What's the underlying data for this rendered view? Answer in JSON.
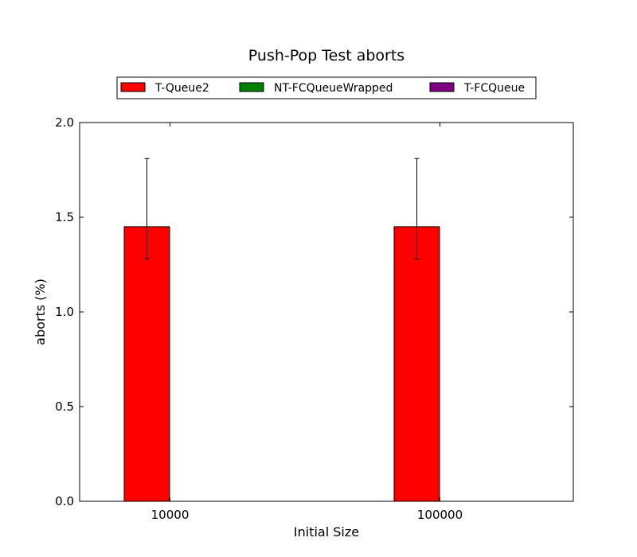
{
  "chart_data": {
    "type": "bar",
    "title": "Push-Pop Test aborts",
    "xlabel": "Initial Size",
    "ylabel": "aborts (%)",
    "categories": [
      "10000",
      "100000"
    ],
    "ylim": [
      0,
      2.0
    ],
    "yticks": [
      0.0,
      0.5,
      1.0,
      1.5,
      2.0
    ],
    "ytick_labels": [
      "0.0",
      "0.5",
      "1.0",
      "1.5",
      "2.0"
    ],
    "legend_position": "top-center",
    "grid": false,
    "series": [
      {
        "name": "T-Queue2",
        "color": "#ff0000",
        "values": [
          1.45,
          1.45
        ],
        "err_low": [
          1.28,
          1.28
        ],
        "err_high": [
          1.81,
          1.81
        ]
      },
      {
        "name": "NT-FCQueueWrapped",
        "color": "#008000",
        "values": [
          0,
          0
        ]
      },
      {
        "name": "T-FCQueue",
        "color": "#800080",
        "values": [
          0,
          0
        ]
      }
    ]
  }
}
